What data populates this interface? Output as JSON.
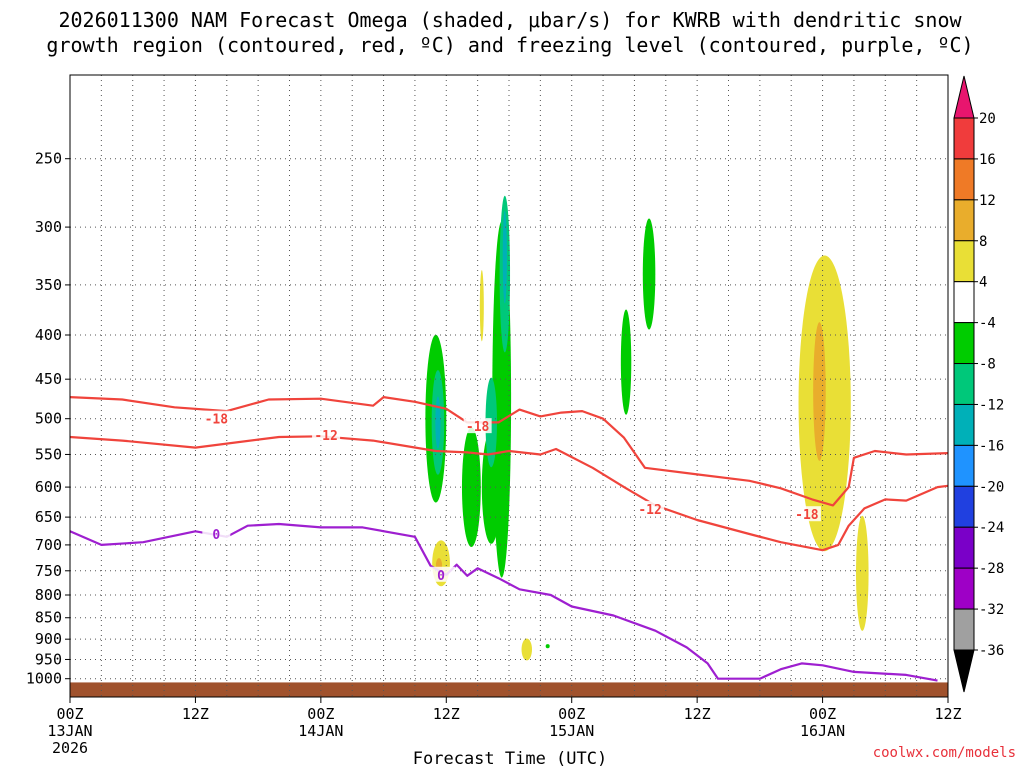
{
  "chart_data": {
    "type": "time-height-contour",
    "title_lines": [
      "2026011300 NAM Forecast Omega (shaded, μbar/s) for KWRB with dendritic snow",
      "growth region (contoured, red, ºC) and freezing level (contoured, purple, ºC)"
    ],
    "xlabel": "Forecast Time (UTC)",
    "credit": "coolwx.com/models",
    "x_range_hours": [
      0,
      84
    ],
    "y_range_mb": [
      1050,
      200
    ],
    "y_ticks": [
      250,
      300,
      350,
      400,
      450,
      500,
      550,
      600,
      650,
      700,
      750,
      800,
      850,
      900,
      950,
      1000
    ],
    "x_ticks": [
      {
        "hour": 0,
        "lines": [
          "00Z",
          "13JAN",
          "2026"
        ]
      },
      {
        "hour": 12,
        "lines": [
          "12Z"
        ]
      },
      {
        "hour": 24,
        "lines": [
          "00Z",
          "14JAN"
        ]
      },
      {
        "hour": 36,
        "lines": [
          "12Z"
        ]
      },
      {
        "hour": 48,
        "lines": [
          "00Z",
          "15JAN"
        ]
      },
      {
        "hour": 60,
        "lines": [
          "12Z"
        ]
      },
      {
        "hour": 72,
        "lines": [
          "00Z",
          "16JAN"
        ]
      },
      {
        "hour": 84,
        "lines": [
          "12Z"
        ]
      }
    ],
    "colorbar": {
      "labels": [
        "20",
        "16",
        "12",
        "8",
        "4",
        "-4",
        "-8",
        "-12",
        "-16",
        "-20",
        "-24",
        "-28",
        "-32",
        "-36"
      ],
      "colors": [
        "#e8156e",
        "#f03c3c",
        "#ef7a26",
        "#e9ad2c",
        "#e9df36",
        "#ffffff",
        "#00cc00",
        "#00c87a",
        "#00b0b8",
        "#1f93ff",
        "#2040e0",
        "#7a00c8",
        "#9e00c6",
        "#a0a0a0",
        "#000000"
      ]
    },
    "series": [
      {
        "name": "-18C isotherm",
        "color": "#f0443c",
        "label": "-18",
        "label_positions": [
          [
            14,
            500
          ],
          [
            39,
            510
          ],
          [
            70.5,
            645
          ]
        ],
        "points": [
          [
            0,
            472
          ],
          [
            5,
            475
          ],
          [
            10,
            485
          ],
          [
            15,
            490
          ],
          [
            19,
            475
          ],
          [
            24,
            474
          ],
          [
            29,
            483
          ],
          [
            30,
            472
          ],
          [
            33,
            478
          ],
          [
            36,
            487
          ],
          [
            38,
            505
          ],
          [
            41,
            505
          ],
          [
            43,
            488
          ],
          [
            45,
            497
          ],
          [
            47,
            492
          ],
          [
            49,
            490
          ],
          [
            51,
            500
          ],
          [
            53,
            526
          ],
          [
            55,
            570
          ],
          [
            60,
            580
          ],
          [
            65,
            590
          ],
          [
            68,
            602
          ],
          [
            71,
            620
          ],
          [
            73,
            630
          ],
          [
            74.5,
            600
          ],
          [
            75,
            555
          ],
          [
            77,
            545
          ],
          [
            80,
            550
          ],
          [
            84,
            548
          ]
        ]
      },
      {
        "name": "-12C isotherm",
        "color": "#f0443c",
        "label": "-12",
        "label_positions": [
          [
            24.5,
            522
          ],
          [
            55.5,
            636
          ]
        ],
        "points": [
          [
            0,
            525
          ],
          [
            5,
            530
          ],
          [
            12,
            540
          ],
          [
            20,
            525
          ],
          [
            24,
            524
          ],
          [
            29,
            530
          ],
          [
            35,
            545
          ],
          [
            38,
            547
          ],
          [
            40,
            550
          ],
          [
            42,
            545
          ],
          [
            45,
            550
          ],
          [
            46.5,
            542
          ],
          [
            50,
            570
          ],
          [
            53,
            600
          ],
          [
            56,
            630
          ],
          [
            60,
            655
          ],
          [
            65,
            680
          ],
          [
            68,
            695
          ],
          [
            72,
            710
          ],
          [
            73.5,
            700
          ],
          [
            74.5,
            665
          ],
          [
            76,
            635
          ],
          [
            78,
            620
          ],
          [
            80,
            622
          ],
          [
            83,
            600
          ],
          [
            84,
            598
          ]
        ]
      },
      {
        "name": "0C freezing level",
        "color": "#9e1fd0",
        "label": "0",
        "label_positions": [
          [
            14,
            680
          ],
          [
            35.5,
            758
          ]
        ],
        "points": [
          [
            0,
            675
          ],
          [
            3,
            700
          ],
          [
            7,
            695
          ],
          [
            12,
            675
          ],
          [
            15,
            685
          ],
          [
            17,
            665
          ],
          [
            20,
            662
          ],
          [
            24,
            668
          ],
          [
            28,
            668
          ],
          [
            33,
            685
          ],
          [
            34.5,
            740
          ],
          [
            36,
            758
          ],
          [
            37,
            738
          ],
          [
            38,
            760
          ],
          [
            39,
            745
          ],
          [
            41,
            765
          ],
          [
            43,
            788
          ],
          [
            46,
            800
          ],
          [
            48,
            825
          ],
          [
            52,
            845
          ],
          [
            56,
            880
          ],
          [
            59,
            920
          ],
          [
            61,
            960
          ],
          [
            62,
            1000
          ],
          [
            66,
            1000
          ],
          [
            68,
            975
          ],
          [
            70,
            960
          ],
          [
            72,
            965
          ],
          [
            75,
            982
          ],
          [
            80,
            990
          ],
          [
            83,
            1005
          ]
        ]
      }
    ],
    "omega_regions": [
      {
        "kind": "upward",
        "band": "-4 to -8",
        "color": "#00cc00",
        "ellipses": [
          [
            35,
            500,
            1.0,
            110
          ],
          [
            38.4,
            600,
            0.9,
            95
          ],
          [
            41.3,
            475,
            0.9,
            210
          ],
          [
            40.3,
            600,
            0.9,
            90
          ],
          [
            55.4,
            340,
            0.6,
            50
          ],
          [
            53.2,
            430,
            0.5,
            60
          ],
          [
            45.7,
            917,
            0.15,
            5
          ]
        ]
      },
      {
        "kind": "upward",
        "band": "-8 to -12",
        "color": "#00c87a",
        "ellipses": [
          [
            35.2,
            505,
            0.6,
            70
          ],
          [
            40.3,
            505,
            0.55,
            60
          ],
          [
            41.6,
            340,
            0.5,
            70
          ]
        ]
      },
      {
        "kind": "upward",
        "band": "-12 to -16",
        "color": "#00b0b8",
        "ellipses": [
          [
            35.2,
            505,
            0.25,
            35
          ],
          [
            41.6,
            325,
            0.2,
            40
          ]
        ]
      },
      {
        "kind": "downward",
        "band": "4 to 8",
        "color": "#e9df36",
        "ellipses": [
          [
            72.2,
            480,
            2.5,
            180
          ],
          [
            35.5,
            735,
            0.85,
            45
          ],
          [
            39.4,
            370,
            0.12,
            35
          ],
          [
            43.7,
            925,
            0.5,
            27
          ],
          [
            75.8,
            755,
            0.6,
            115
          ]
        ]
      },
      {
        "kind": "downward",
        "band": "8 to 12",
        "color": "#e9ad2c",
        "ellipses": [
          [
            71.7,
            465,
            0.6,
            85
          ],
          [
            35.3,
            740,
            0.3,
            15
          ]
        ]
      }
    ],
    "ground_color": "#a0522d"
  }
}
